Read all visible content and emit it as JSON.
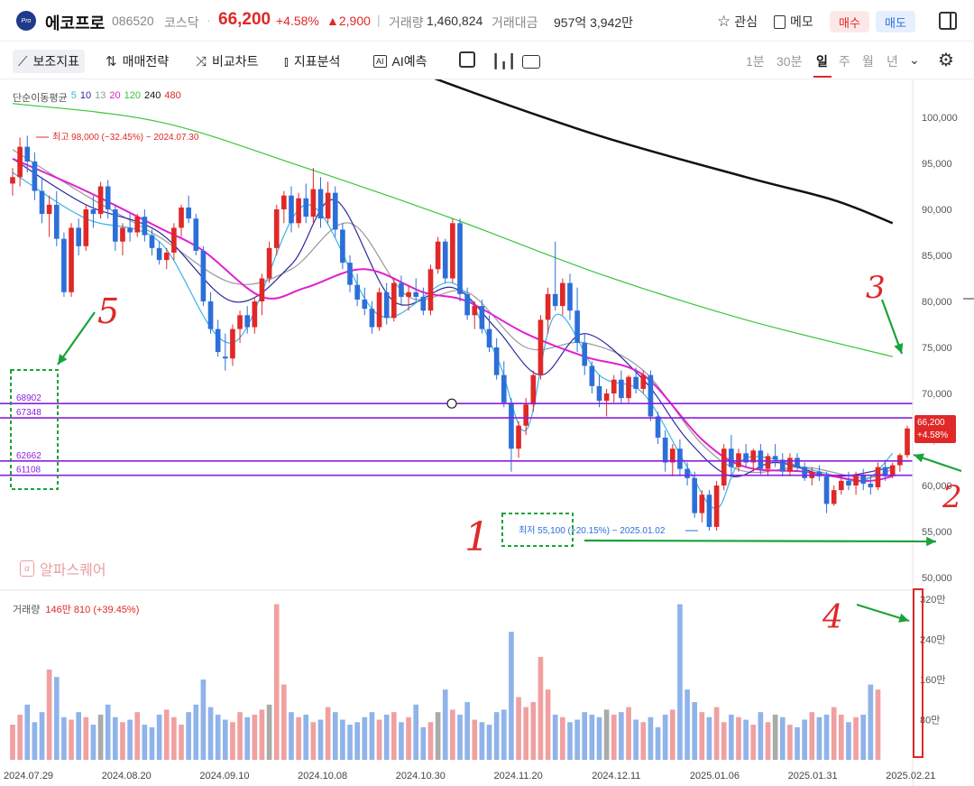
{
  "header": {
    "logo": "Pro",
    "name": "에코프로",
    "code": "086520",
    "market": "코스닥",
    "dot": "·",
    "price": "66,200",
    "change_pct": "+4.58%",
    "change_amt": "▲2,900",
    "vol_sep": "|",
    "volume_label": "거래량",
    "volume": "1,460,824",
    "amount_label": "거래대금",
    "amount": "957억 3,942만",
    "watch_label": "관심",
    "memo_label": "메모",
    "buy_label": "매수",
    "sell_label": "매도"
  },
  "toolbar": {
    "indicators": "보조지표",
    "strategy": "매매전략",
    "compare": "비교차트",
    "analysis": "지표분석",
    "ai_forecast": "AI예측",
    "timeframes": [
      "1분",
      "30분",
      "일",
      "주",
      "월",
      "년"
    ],
    "selected_timeframe": "일"
  },
  "legend": {
    "ma_title": "단순이동평균",
    "ma_periods": [
      {
        "label": "5",
        "color": "#3ab4e6"
      },
      {
        "label": "10",
        "color": "#2a2aa0"
      },
      {
        "label": "13",
        "color": "#999999"
      },
      {
        "label": "20",
        "color": "#e01fd0"
      },
      {
        "label": "120",
        "color": "#39c639"
      },
      {
        "label": "240",
        "color": "#111111"
      },
      {
        "label": "480",
        "color": "#e02828"
      }
    ],
    "volume_title": "거래량",
    "volume_value": "146만 810 (+39.45%)"
  },
  "annotations": {
    "high": "최고 98,000 (−32.45%) − 2024.07.30",
    "low": "최저 55,100 (+20.15%) − 2025.01.02",
    "alpha_square": "알파스퀘어",
    "hlines": [
      "68902",
      "67348",
      "62662",
      "61108"
    ],
    "handwritten": [
      "1",
      "2",
      "3",
      "4",
      "5"
    ],
    "price_tag": [
      "66,200",
      "+4.58%"
    ]
  },
  "colors": {
    "up": "#e02828",
    "down": "#2c6fd9",
    "vol_up": "#f0a0a0",
    "vol_down": "#8fb3ea",
    "hline": "#8a1ee0",
    "arrow": "#1aa33a"
  },
  "chart_data": {
    "type": "candlestick",
    "price_ticks": [
      "100,000",
      "95,000",
      "90,000",
      "85,000",
      "80,000",
      "75,000",
      "70,000",
      "65,000",
      "60,000",
      "55,000",
      "50,000"
    ],
    "volume_ticks": [
      "320만",
      "240만",
      "160만",
      "80만"
    ],
    "date_labels": [
      "2024.07.29",
      "2024.08.20",
      "2024.09.10",
      "2024.10.08",
      "2024.10.30",
      "2024.11.20",
      "2024.12.11",
      "2025.01.06",
      "2025.01.31",
      "2025.02.21"
    ],
    "ylim": [
      48000,
      103000
    ],
    "candles": [
      [
        92800,
        94500,
        91500,
        93500
      ],
      [
        93500,
        97800,
        92500,
        96800
      ],
      [
        96800,
        98000,
        94000,
        95200
      ],
      [
        95200,
        96200,
        91000,
        92000
      ],
      [
        92000,
        93500,
        88500,
        89500
      ],
      [
        89500,
        91500,
        87000,
        90500
      ],
      [
        90500,
        92000,
        86000,
        86800
      ],
      [
        86800,
        87500,
        80500,
        81000
      ],
      [
        81000,
        88500,
        80500,
        88000
      ],
      [
        88000,
        89000,
        85000,
        86000
      ],
      [
        86000,
        90500,
        85500,
        90000
      ],
      [
        90000,
        91500,
        88000,
        89500
      ],
      [
        89500,
        93000,
        89000,
        92500
      ],
      [
        92500,
        93200,
        89000,
        90000
      ],
      [
        90000,
        90500,
        85500,
        86500
      ],
      [
        86500,
        88500,
        85000,
        88000
      ],
      [
        88000,
        89500,
        86500,
        87500
      ],
      [
        87500,
        89500,
        87000,
        89200
      ],
      [
        89200,
        90000,
        86500,
        87200
      ],
      [
        87200,
        87800,
        85000,
        85800
      ],
      [
        85800,
        86500,
        84000,
        84500
      ],
      [
        84500,
        85800,
        83500,
        85300
      ],
      [
        85300,
        88500,
        84500,
        88000
      ],
      [
        88000,
        90500,
        87000,
        90200
      ],
      [
        90200,
        91500,
        88500,
        89000
      ],
      [
        89000,
        89500,
        85000,
        85500
      ],
      [
        85500,
        86000,
        79500,
        80000
      ],
      [
        80000,
        81000,
        76500,
        77000
      ],
      [
        77000,
        78000,
        74000,
        74500
      ],
      [
        74000,
        76500,
        72500,
        73800
      ],
      [
        73800,
        77500,
        73000,
        77000
      ],
      [
        77000,
        79000,
        75500,
        78500
      ],
      [
        78500,
        79500,
        76500,
        77200
      ],
      [
        77200,
        80500,
        76500,
        80000
      ],
      [
        80000,
        83000,
        78500,
        82500
      ],
      [
        82500,
        86500,
        82000,
        85800
      ],
      [
        85800,
        90500,
        85000,
        90000
      ],
      [
        90000,
        92000,
        88500,
        91500
      ],
      [
        91500,
        92500,
        87500,
        88500
      ],
      [
        88500,
        91800,
        88000,
        91200
      ],
      [
        91200,
        92800,
        88500,
        89200
      ],
      [
        89200,
        94500,
        88500,
        92200
      ],
      [
        92200,
        93500,
        88000,
        89000
      ],
      [
        89000,
        93000,
        88500,
        91800
      ],
      [
        91800,
        92500,
        87000,
        87800
      ],
      [
        87800,
        88500,
        83500,
        84200
      ],
      [
        84200,
        85000,
        81000,
        81800
      ],
      [
        81800,
        83000,
        79500,
        80200
      ],
      [
        80200,
        81500,
        78500,
        79200
      ],
      [
        79200,
        80000,
        76500,
        77200
      ],
      [
        77200,
        81500,
        76800,
        81000
      ],
      [
        81000,
        82000,
        77500,
        78200
      ],
      [
        78200,
        82500,
        77800,
        82000
      ],
      [
        82000,
        82800,
        79500,
        80500
      ],
      [
        80500,
        81800,
        79000,
        81000
      ],
      [
        81000,
        82500,
        79800,
        80500
      ],
      [
        80500,
        81500,
        78500,
        79000
      ],
      [
        79000,
        84000,
        78500,
        83500
      ],
      [
        83500,
        87000,
        83000,
        86500
      ],
      [
        86500,
        86800,
        82000,
        82500
      ],
      [
        82500,
        89000,
        82000,
        88500
      ],
      [
        88500,
        89000,
        80000,
        80800
      ],
      [
        80800,
        81500,
        78000,
        78500
      ],
      [
        78500,
        80000,
        77000,
        79500
      ],
      [
        79500,
        80200,
        76500,
        77000
      ],
      [
        77000,
        78500,
        74500,
        75000
      ],
      [
        75000,
        76000,
        71500,
        72000
      ],
      [
        72000,
        73500,
        68500,
        69000
      ],
      [
        69000,
        69500,
        61500,
        64000
      ],
      [
        64000,
        67000,
        63000,
        66500
      ],
      [
        66500,
        69500,
        65500,
        68800
      ],
      [
        68800,
        72500,
        68000,
        72000
      ],
      [
        72000,
        78500,
        71500,
        78000
      ],
      [
        78000,
        81500,
        76500,
        80800
      ],
      [
        80800,
        86500,
        79000,
        79500
      ],
      [
        79500,
        82500,
        78500,
        82000
      ],
      [
        82000,
        83000,
        78000,
        79000
      ],
      [
        79000,
        81500,
        74500,
        75500
      ],
      [
        75500,
        76500,
        72000,
        73000
      ],
      [
        73000,
        73500,
        70000,
        70800
      ],
      [
        70800,
        72000,
        68500,
        69200
      ],
      [
        69200,
        70500,
        67500,
        70000
      ],
      [
        70000,
        72000,
        69000,
        71500
      ],
      [
        71500,
        72500,
        69000,
        69500
      ],
      [
        69500,
        72000,
        69000,
        71800
      ],
      [
        71800,
        72800,
        70000,
        70500
      ],
      [
        70500,
        72500,
        70000,
        72000
      ],
      [
        72000,
        72500,
        67000,
        67500
      ],
      [
        67500,
        68000,
        64500,
        65200
      ],
      [
        65200,
        66000,
        61500,
        62500
      ],
      [
        62500,
        64500,
        61000,
        64000
      ],
      [
        64000,
        65000,
        61000,
        61800
      ],
      [
        61800,
        62500,
        60000,
        60800
      ],
      [
        60800,
        61500,
        56500,
        57000
      ],
      [
        57000,
        59500,
        56000,
        59000
      ],
      [
        59000,
        59500,
        55100,
        55500
      ],
      [
        55500,
        60500,
        55100,
        60000
      ],
      [
        60000,
        64500,
        59500,
        64000
      ],
      [
        64000,
        65500,
        61000,
        62000
      ],
      [
        62000,
        64000,
        61500,
        63500
      ],
      [
        63500,
        64500,
        62000,
        62500
      ],
      [
        62500,
        64000,
        61500,
        63800
      ],
      [
        63800,
        64500,
        61200,
        61800
      ],
      [
        61800,
        63500,
        61000,
        63200
      ],
      [
        63200,
        64500,
        62000,
        62800
      ],
      [
        62800,
        63500,
        61000,
        61500
      ],
      [
        61500,
        63500,
        61000,
        63000
      ],
      [
        63000,
        63500,
        61500,
        62000
      ],
      [
        62000,
        62500,
        60500,
        60800
      ],
      [
        60800,
        62000,
        60000,
        61500
      ],
      [
        61500,
        62200,
        60500,
        61000
      ],
      [
        61000,
        61500,
        57000,
        58000
      ],
      [
        58000,
        60000,
        57800,
        59500
      ],
      [
        59500,
        61000,
        59000,
        60500
      ],
      [
        60500,
        61500,
        59500,
        60000
      ],
      [
        60000,
        61500,
        59000,
        61200
      ],
      [
        61200,
        61800,
        59500,
        60200
      ],
      [
        60200,
        61000,
        59000,
        59800
      ],
      [
        59800,
        62500,
        59500,
        62000
      ],
      [
        62000,
        62800,
        60500,
        61000
      ],
      [
        61000,
        62500,
        60800,
        62200
      ],
      [
        62200,
        63500,
        61500,
        63300
      ],
      [
        63300,
        66500,
        63000,
        66200
      ]
    ],
    "ma5": [
      [
        0,
        94000
      ],
      [
        10,
        89000
      ],
      [
        20,
        86500
      ],
      [
        30,
        75500
      ],
      [
        40,
        90500
      ],
      [
        50,
        78500
      ],
      [
        60,
        82000
      ],
      [
        66,
        74000
      ],
      [
        70,
        66000
      ],
      [
        74,
        78500
      ],
      [
        80,
        72000
      ],
      [
        86,
        70000
      ],
      [
        92,
        62000
      ],
      [
        96,
        57500
      ],
      [
        100,
        63000
      ],
      [
        110,
        61500
      ],
      [
        116,
        60500
      ],
      [
        120,
        63500
      ]
    ],
    "ma10": [
      [
        0,
        95500
      ],
      [
        10,
        90500
      ],
      [
        20,
        87500
      ],
      [
        30,
        80000
      ],
      [
        38,
        84000
      ],
      [
        44,
        91000
      ],
      [
        52,
        80000
      ],
      [
        60,
        81500
      ],
      [
        66,
        77000
      ],
      [
        72,
        72000
      ],
      [
        78,
        76500
      ],
      [
        86,
        71500
      ],
      [
        92,
        65000
      ],
      [
        98,
        61000
      ],
      [
        104,
        62500
      ],
      [
        112,
        61000
      ],
      [
        120,
        62000
      ]
    ],
    "ma13": [
      [
        0,
        96500
      ],
      [
        10,
        91500
      ],
      [
        20,
        87000
      ],
      [
        30,
        82000
      ],
      [
        38,
        83500
      ],
      [
        46,
        88500
      ],
      [
        54,
        80500
      ],
      [
        62,
        81000
      ],
      [
        70,
        75000
      ],
      [
        78,
        75500
      ],
      [
        86,
        72500
      ],
      [
        94,
        64500
      ],
      [
        100,
        61500
      ],
      [
        108,
        62000
      ],
      [
        116,
        60800
      ],
      [
        120,
        61800
      ]
    ],
    "ma20": [
      [
        0,
        95500
      ],
      [
        10,
        92000
      ],
      [
        20,
        88000
      ],
      [
        26,
        85500
      ],
      [
        34,
        80500
      ],
      [
        40,
        81500
      ],
      [
        48,
        83500
      ],
      [
        56,
        81000
      ],
      [
        62,
        80000
      ],
      [
        70,
        76500
      ],
      [
        78,
        74000
      ],
      [
        86,
        72000
      ],
      [
        94,
        65000
      ],
      [
        100,
        62000
      ],
      [
        108,
        61500
      ],
      [
        116,
        60500
      ],
      [
        120,
        61000
      ]
    ],
    "ma120": [
      [
        0,
        101500
      ],
      [
        20,
        99500
      ],
      [
        40,
        94500
      ],
      [
        60,
        89000
      ],
      [
        80,
        83000
      ],
      [
        100,
        78000
      ],
      [
        120,
        74000
      ]
    ],
    "ma240": [
      [
        42,
        109000
      ],
      [
        60,
        103500
      ],
      [
        80,
        98000
      ],
      [
        100,
        93500
      ],
      [
        112,
        91000
      ],
      [
        120,
        88500
      ]
    ],
    "volume": [
      70,
      90,
      110,
      75,
      95,
      180,
      165,
      85,
      80,
      95,
      85,
      70,
      90,
      110,
      85,
      75,
      80,
      95,
      70,
      65,
      90,
      100,
      85,
      70,
      95,
      110,
      160,
      105,
      90,
      80,
      75,
      95,
      85,
      90,
      100,
      110,
      310,
      150,
      95,
      85,
      90,
      75,
      80,
      105,
      95,
      80,
      70,
      75,
      85,
      95,
      80,
      90,
      95,
      75,
      85,
      110,
      65,
      75,
      95,
      140,
      100,
      90,
      115,
      80,
      75,
      70,
      95,
      100,
      255,
      125,
      105,
      115,
      205,
      140,
      90,
      85,
      75,
      80,
      95,
      90,
      85,
      100,
      90,
      95,
      105,
      80,
      75,
      85,
      65,
      90,
      100,
      310,
      140,
      115,
      95,
      85,
      105,
      75,
      90,
      85,
      80,
      70,
      95,
      75,
      90,
      85,
      70,
      65,
      80,
      95,
      85,
      90,
      105,
      90,
      75,
      85,
      90,
      150,
      140
    ]
  }
}
